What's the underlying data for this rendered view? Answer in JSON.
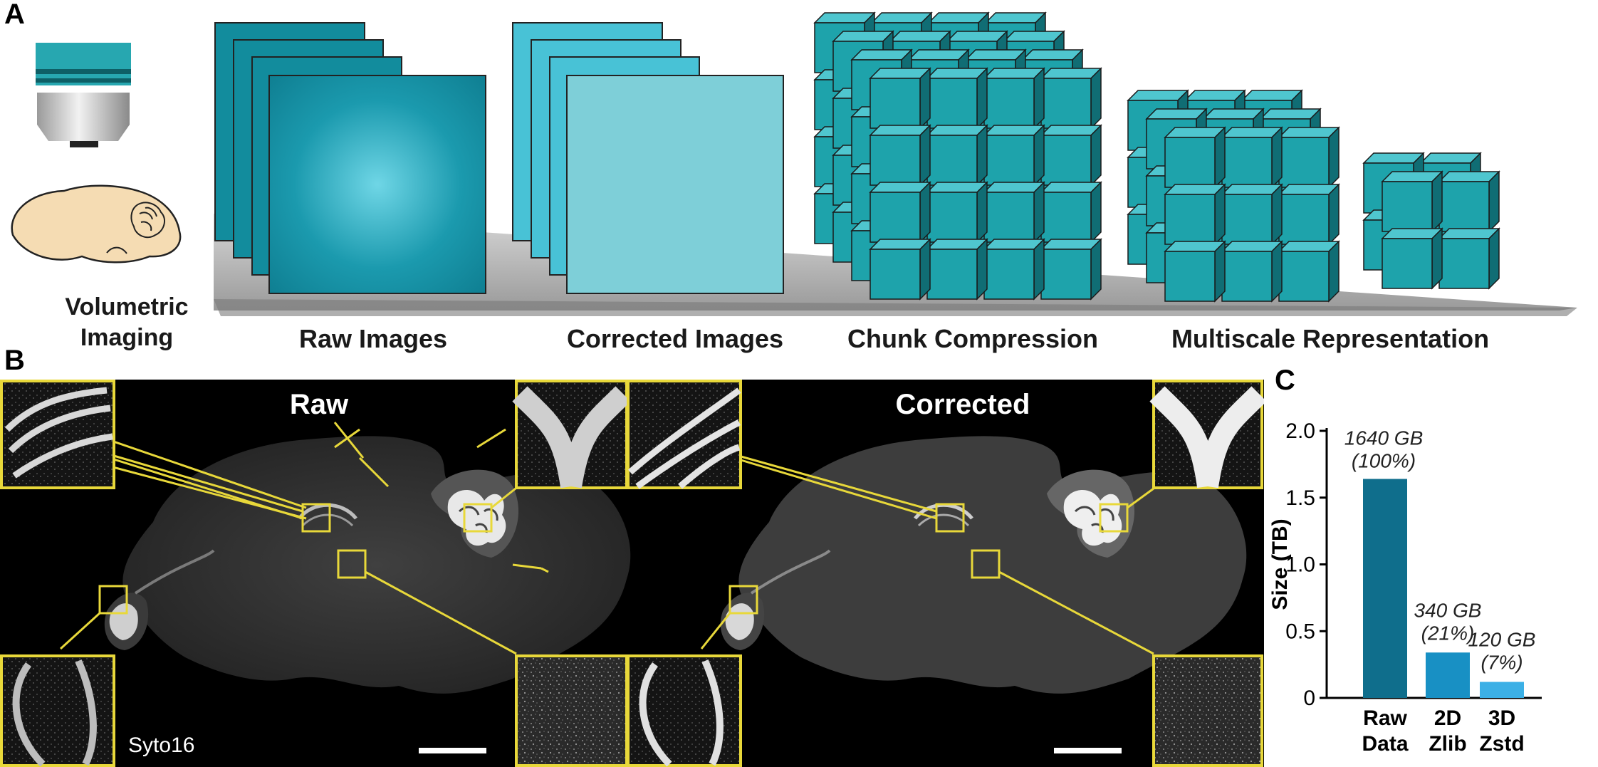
{
  "panels": {
    "a": {
      "letter": "A",
      "volumetric_label_line1": "Volumetric",
      "volumetric_label_line2": "Imaging",
      "stages": [
        "Raw Images",
        "Corrected Images",
        "Chunk Compression",
        "Multiscale Representation"
      ]
    },
    "b": {
      "letter": "B",
      "raw_title": "Raw",
      "corrected_title": "Corrected",
      "stain_label": "Syto16"
    },
    "c": {
      "letter": "C"
    }
  },
  "colors": {
    "teal_dark": "#138a9c",
    "teal_light": "#48c2d6",
    "teal_pale": "#7ecfd8",
    "cube_face": "#1ea3ab",
    "cube_top": "#4fc6cf",
    "cube_side": "#106d74",
    "highlight_yellow": "#e8d83a",
    "bar_raw": "#0f6e8c",
    "bar_2d": "#1890c4",
    "bar_3d": "#3bb0e6",
    "brain_fill": "#f5dcb3"
  },
  "chart_data": {
    "type": "bar",
    "categories": [
      "Raw\nData",
      "2D\nZlib",
      "3D\nZstd"
    ],
    "category_lines": [
      [
        "Raw",
        "Data"
      ],
      [
        "2D",
        "Zlib"
      ],
      [
        "3D",
        "Zstd"
      ]
    ],
    "values": [
      1.64,
      0.34,
      0.12
    ],
    "bar_labels": [
      [
        "1640 GB",
        "(100%)"
      ],
      [
        "340 GB",
        "(21%)"
      ],
      [
        "120 GB",
        "(7%)"
      ]
    ],
    "ylabel": "Size (TB)",
    "xlabel": "",
    "ylim": [
      0,
      2.0
    ],
    "yticks": [
      "0",
      "0.5",
      "1.0",
      "1.5",
      "2.0"
    ],
    "ytick_values": [
      0,
      0.5,
      1.0,
      1.5,
      2.0
    ]
  }
}
